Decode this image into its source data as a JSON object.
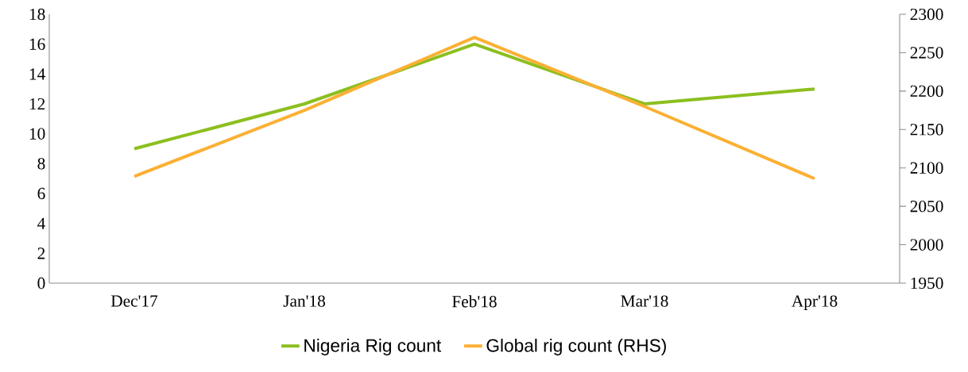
{
  "chart_data": {
    "type": "line",
    "categories": [
      "Dec'17",
      "Jan'18",
      "Feb'18",
      "Mar'18",
      "Apr'18"
    ],
    "series": [
      {
        "name": "Nigeria Rig count",
        "color": "#8cbf1f",
        "values": [
          9,
          12,
          16,
          12,
          13
        ]
      },
      {
        "name": "Global rig count (RHS)",
        "color": "#fbb034",
        "axis": "y2",
        "values": [
          2089,
          2175,
          2270,
          2180,
          2086
        ]
      }
    ],
    "ylim": [
      0,
      18
    ],
    "yticks": [
      0,
      2,
      4,
      6,
      8,
      10,
      12,
      14,
      16,
      18
    ],
    "y2lim": [
      1950,
      2300
    ],
    "y2ticks": [
      1950,
      2000,
      2050,
      2100,
      2150,
      2200,
      2250,
      2300
    ],
    "legend": "bottom"
  }
}
